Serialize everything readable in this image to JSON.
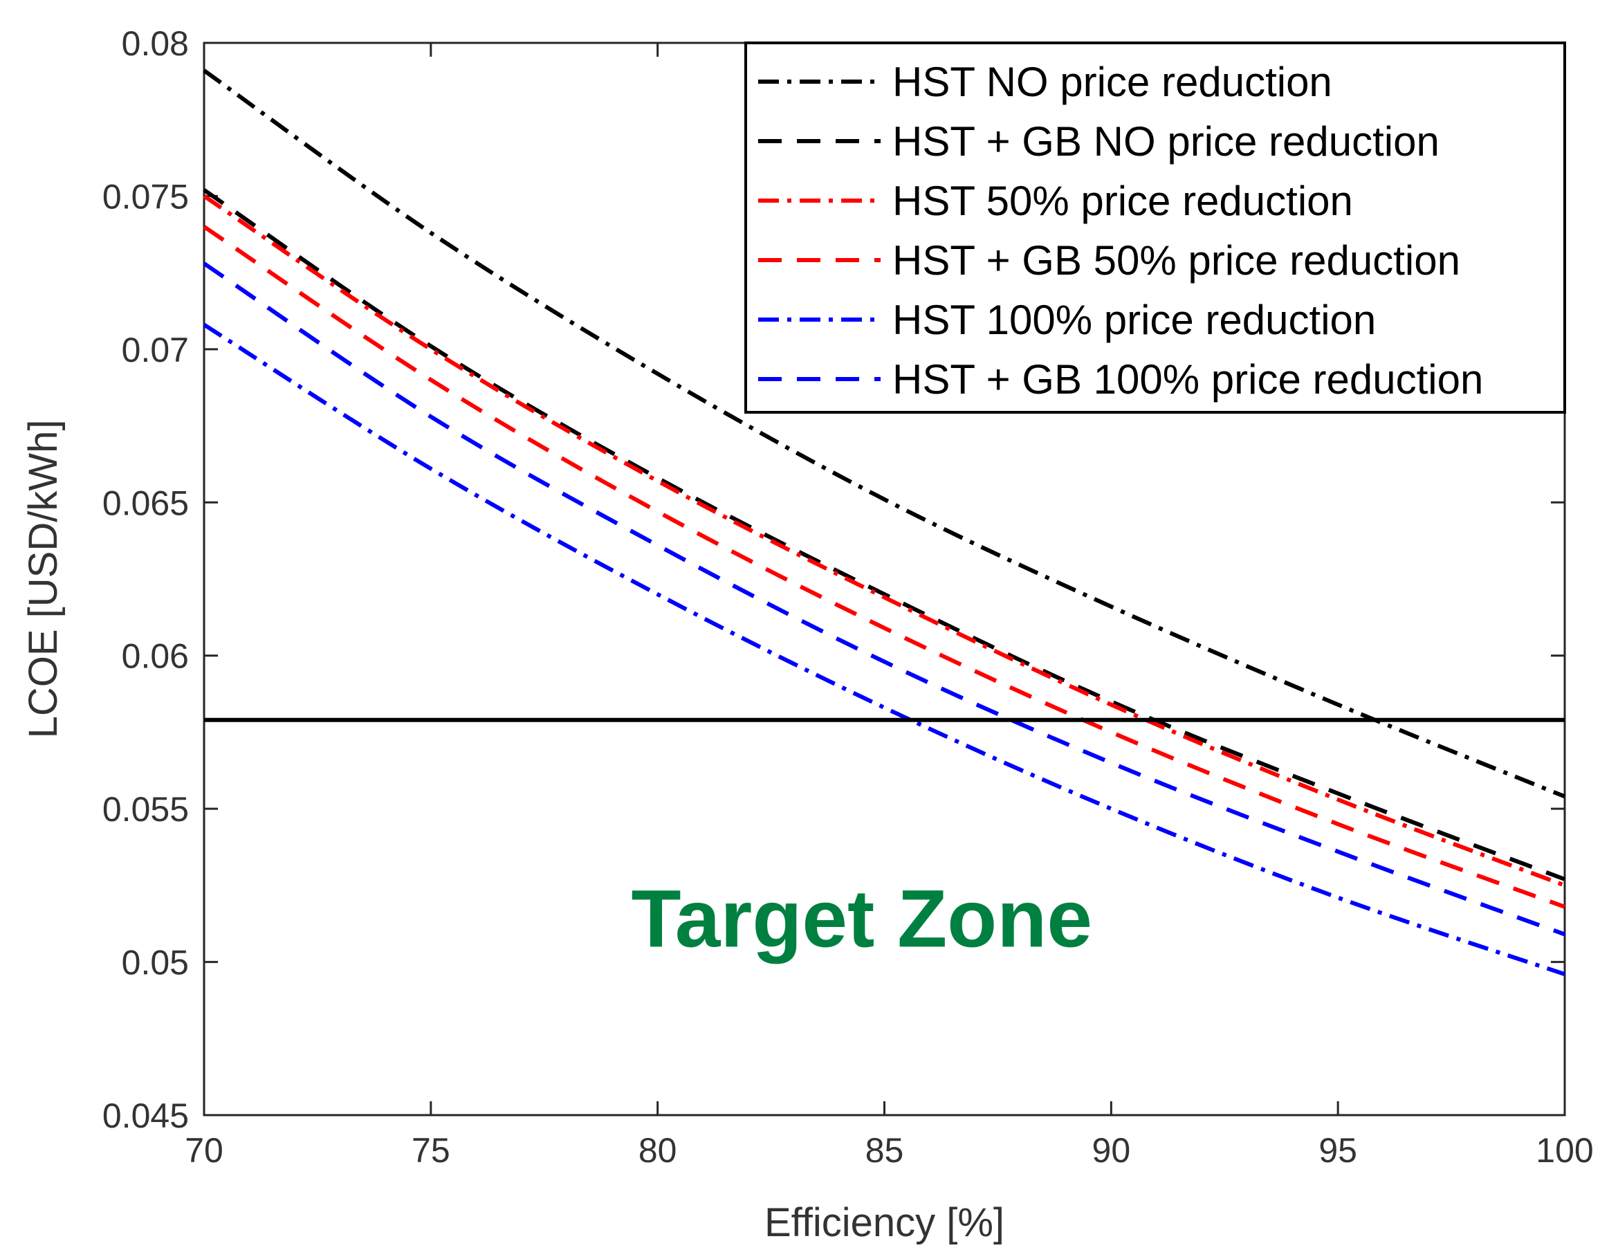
{
  "chart_data": {
    "type": "line",
    "title": "",
    "xlabel": "Efficiency [%]",
    "ylabel": "LCOE [USD/kWh]",
    "xlim": [
      70,
      100
    ],
    "ylim": [
      0.045,
      0.08
    ],
    "xticks": [
      70,
      75,
      80,
      85,
      90,
      95,
      100
    ],
    "xtick_labels": [
      "70",
      "75",
      "80",
      "85",
      "90",
      "95",
      "100"
    ],
    "yticks": [
      0.045,
      0.05,
      0.055,
      0.06,
      0.065,
      0.07,
      0.075,
      0.08
    ],
    "ytick_labels": [
      "0.045",
      "0.05",
      "0.055",
      "0.06",
      "0.065",
      "0.07",
      "0.075",
      "0.08"
    ],
    "grid": false,
    "legend_position": "top-right",
    "x": [
      70,
      75,
      80,
      85,
      90,
      95,
      100
    ],
    "series": [
      {
        "name": "HST NO price reduction",
        "color": "#000000",
        "style": "dashdot",
        "values": [
          0.0791,
          0.0738,
          0.0692,
          0.0651,
          0.0616,
          0.0584,
          0.0554
        ]
      },
      {
        "name": "HST + GB NO price reduction",
        "color": "#000000",
        "style": "dashed",
        "values": [
          0.0752,
          0.0701,
          0.0658,
          0.062,
          0.0585,
          0.0555,
          0.0527
        ]
      },
      {
        "name": "HST 50% price reduction",
        "color": "#ff0000",
        "style": "dashdot",
        "values": [
          0.075,
          0.07,
          0.0657,
          0.0619,
          0.0584,
          0.0553,
          0.0525
        ]
      },
      {
        "name": "HST + GB 50% price reduction",
        "color": "#ff0000",
        "style": "dashed",
        "values": [
          0.074,
          0.069,
          0.0647,
          0.0609,
          0.0575,
          0.0545,
          0.0518
        ]
      },
      {
        "name": "HST 100% price reduction",
        "color": "#0000ff",
        "style": "dashdot",
        "values": [
          0.0708,
          0.0661,
          0.062,
          0.0583,
          0.055,
          0.0521,
          0.0496
        ]
      },
      {
        "name": "HST + GB 100% price reduction",
        "color": "#0000ff",
        "style": "dashed",
        "values": [
          0.0728,
          0.0678,
          0.0636,
          0.0598,
          0.0565,
          0.0536,
          0.0509
        ]
      }
    ],
    "reference_line": {
      "y": 0.0579,
      "color": "#000000"
    },
    "annotations": [
      {
        "text": "Target Zone",
        "x": 84.5,
        "y": 0.0505,
        "color": "#008040"
      }
    ]
  }
}
